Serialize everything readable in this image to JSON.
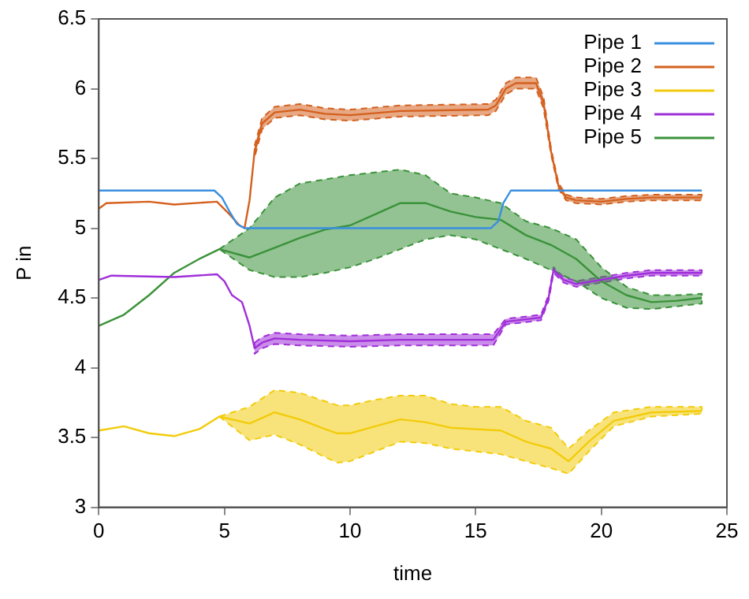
{
  "chart_data": {
    "type": "line",
    "xlabel": "time",
    "ylabel": "P in",
    "xlim": [
      0,
      25
    ],
    "xticks": [
      0,
      5,
      10,
      15,
      20,
      25
    ],
    "ylim": [
      3,
      6.5
    ],
    "yticks": [
      3,
      3.5,
      4,
      4.5,
      5,
      5.5,
      6,
      6.5
    ],
    "legend": "top right",
    "series": [
      {
        "name": "Pipe 1",
        "color": "#3a8fe0",
        "x": [
          0,
          4.6,
          4.9,
          5.2,
          5.5,
          5.8,
          15.6,
          15.9,
          16.1,
          16.4,
          24
        ],
        "values": [
          5.27,
          5.27,
          5.22,
          5.12,
          5.03,
          5.0,
          5.0,
          5.05,
          5.18,
          5.27,
          5.27
        ]
      },
      {
        "name": "Pipe 2",
        "color": "#d4601e",
        "x": [
          0,
          0.3,
          2,
          3,
          4.7,
          5.2,
          5.6,
          5.8,
          6.0,
          6.2,
          6.5,
          7,
          8,
          9,
          10,
          12,
          15.5,
          15.8,
          16.2,
          16.6,
          17.4,
          17.7,
          18.0,
          18.3,
          18.6,
          19,
          20,
          21,
          22,
          24
        ],
        "values": [
          5.14,
          5.18,
          5.19,
          5.17,
          5.19,
          5.1,
          5.02,
          5.0,
          5.2,
          5.55,
          5.75,
          5.83,
          5.85,
          5.82,
          5.81,
          5.84,
          5.85,
          5.88,
          6.0,
          6.04,
          6.04,
          5.9,
          5.55,
          5.3,
          5.22,
          5.2,
          5.19,
          5.21,
          5.22,
          5.22
        ],
        "upper": [
          null,
          null,
          null,
          null,
          null,
          null,
          null,
          null,
          null,
          5.59,
          5.79,
          5.87,
          5.89,
          5.86,
          5.85,
          5.88,
          5.89,
          5.92,
          6.04,
          6.08,
          6.08,
          5.94,
          5.57,
          5.32,
          5.24,
          5.22,
          5.21,
          5.23,
          5.24,
          5.24
        ],
        "lower": [
          null,
          null,
          null,
          null,
          null,
          null,
          null,
          null,
          null,
          5.51,
          5.71,
          5.79,
          5.81,
          5.78,
          5.77,
          5.8,
          5.81,
          5.84,
          5.96,
          6.0,
          6.0,
          5.86,
          5.53,
          5.28,
          5.2,
          5.18,
          5.17,
          5.19,
          5.2,
          5.2
        ]
      },
      {
        "name": "Pipe 3",
        "color": "#f2cc0c",
        "x": [
          0,
          1,
          2,
          3,
          4,
          4.8,
          6,
          7,
          8,
          9,
          9.5,
          10,
          11,
          12,
          13,
          14,
          15,
          16,
          17,
          18,
          18.7,
          19.5,
          20.5,
          22,
          24
        ],
        "values": [
          3.55,
          3.58,
          3.53,
          3.51,
          3.56,
          3.65,
          3.6,
          3.68,
          3.63,
          3.56,
          3.53,
          3.53,
          3.58,
          3.63,
          3.61,
          3.57,
          3.56,
          3.55,
          3.47,
          3.42,
          3.33,
          3.47,
          3.62,
          3.68,
          3.69
        ],
        "upper": [
          null,
          null,
          null,
          null,
          null,
          3.65,
          3.72,
          3.84,
          3.82,
          3.76,
          3.73,
          3.73,
          3.77,
          3.8,
          3.8,
          3.74,
          3.72,
          3.72,
          3.62,
          3.57,
          3.42,
          3.55,
          3.68,
          3.72,
          3.72
        ],
        "lower": [
          null,
          null,
          null,
          null,
          null,
          3.65,
          3.48,
          3.52,
          3.45,
          3.36,
          3.32,
          3.33,
          3.4,
          3.47,
          3.46,
          3.42,
          3.4,
          3.38,
          3.33,
          3.28,
          3.24,
          3.4,
          3.58,
          3.65,
          3.67
        ]
      },
      {
        "name": "Pipe 4",
        "color": "#a02fd9",
        "x": [
          0,
          0.5,
          3,
          4.7,
          5.0,
          5.3,
          5.7,
          6.0,
          6.2,
          6.5,
          7,
          8,
          10,
          12,
          14,
          15.7,
          16.2,
          17.6,
          17.9,
          18.1,
          18.5,
          19,
          20,
          21,
          22,
          24
        ],
        "values": [
          4.63,
          4.66,
          4.65,
          4.67,
          4.62,
          4.52,
          4.47,
          4.3,
          4.14,
          4.18,
          4.21,
          4.2,
          4.19,
          4.2,
          4.2,
          4.2,
          4.33,
          4.36,
          4.5,
          4.7,
          4.63,
          4.6,
          4.63,
          4.66,
          4.68,
          4.68
        ],
        "upper": [
          null,
          null,
          null,
          null,
          null,
          null,
          null,
          null,
          4.18,
          4.22,
          4.25,
          4.24,
          4.23,
          4.24,
          4.24,
          4.24,
          4.35,
          4.38,
          4.52,
          4.72,
          4.65,
          4.62,
          4.65,
          4.68,
          4.7,
          4.7
        ],
        "lower": [
          null,
          null,
          null,
          null,
          null,
          null,
          null,
          null,
          4.1,
          4.14,
          4.17,
          4.16,
          4.15,
          4.16,
          4.16,
          4.16,
          4.31,
          4.34,
          4.48,
          4.68,
          4.61,
          4.58,
          4.61,
          4.64,
          4.66,
          4.66
        ]
      },
      {
        "name": "Pipe 5",
        "color": "#3a923a",
        "x": [
          0,
          1,
          2,
          3,
          4,
          4.8,
          6,
          7,
          8,
          9,
          10,
          11,
          12,
          13,
          14,
          15,
          16,
          17,
          18,
          19,
          20,
          21,
          22,
          23,
          24
        ],
        "values": [
          4.3,
          4.38,
          4.52,
          4.68,
          4.78,
          4.85,
          4.79,
          4.86,
          4.93,
          4.99,
          5.02,
          5.1,
          5.18,
          5.18,
          5.12,
          5.08,
          5.06,
          4.95,
          4.88,
          4.78,
          4.62,
          4.52,
          4.47,
          4.48,
          4.5
        ],
        "upper": [
          null,
          null,
          null,
          null,
          null,
          4.85,
          5.0,
          5.22,
          5.32,
          5.35,
          5.38,
          5.4,
          5.42,
          5.38,
          5.25,
          5.22,
          5.18,
          5.05,
          5.0,
          4.92,
          4.72,
          4.58,
          4.52,
          4.52,
          4.53
        ],
        "lower": [
          null,
          null,
          null,
          null,
          null,
          4.85,
          4.7,
          4.65,
          4.65,
          4.68,
          4.72,
          4.78,
          4.85,
          4.92,
          4.95,
          4.92,
          4.85,
          4.78,
          4.7,
          4.62,
          4.5,
          4.43,
          4.42,
          4.44,
          4.46
        ]
      }
    ]
  }
}
